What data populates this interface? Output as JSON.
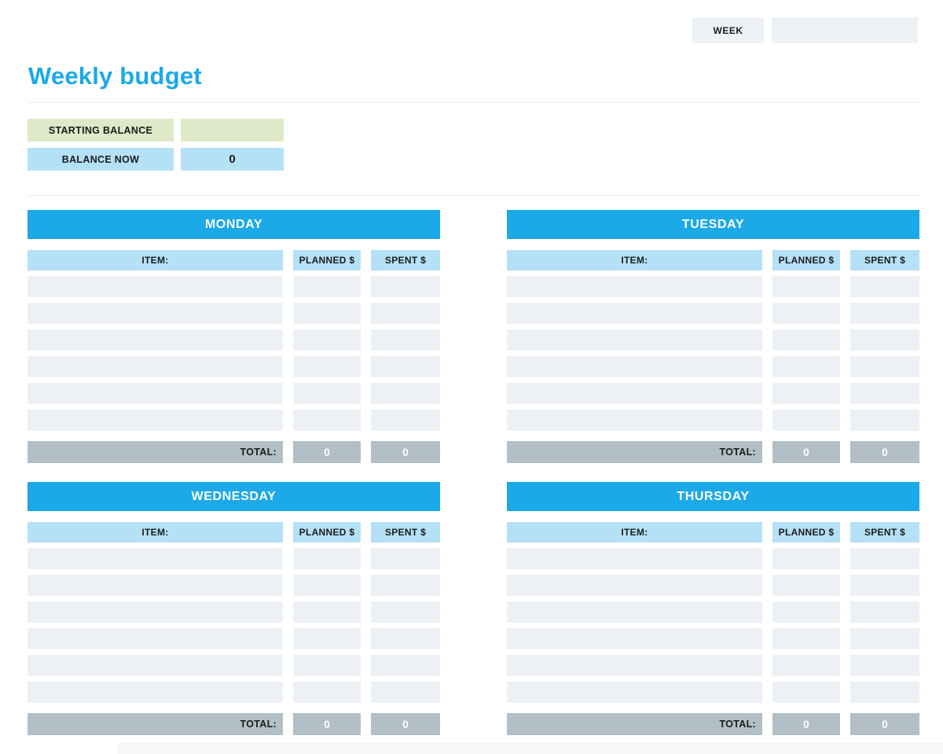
{
  "header": {
    "week_label": "WEEK",
    "week_value": ""
  },
  "title": "Weekly budget",
  "balance": {
    "starting_label": "STARTING BALANCE",
    "starting_value": "",
    "now_label": "BALANCE NOW",
    "now_value": "0"
  },
  "colors": {
    "accent_blue": "#1ca9e8",
    "light_blue": "#b5e1f7",
    "row_gray": "#edf1f5",
    "total_gray": "#b3bfc6",
    "green": "#dfe8c8",
    "box_gray": "#eef2f5"
  },
  "tables": [
    {
      "day": "MONDAY",
      "columns": {
        "item": "ITEM:",
        "planned": "PLANNED $",
        "spent": "SPENT $"
      },
      "entries": [
        {
          "item": "",
          "planned": "",
          "spent": ""
        },
        {
          "item": "",
          "planned": "",
          "spent": ""
        },
        {
          "item": "",
          "planned": "",
          "spent": ""
        },
        {
          "item": "",
          "planned": "",
          "spent": ""
        },
        {
          "item": "",
          "planned": "",
          "spent": ""
        },
        {
          "item": "",
          "planned": "",
          "spent": ""
        }
      ],
      "total_label": "TOTAL:",
      "total_planned": "0",
      "total_spent": "0"
    },
    {
      "day": "TUESDAY",
      "columns": {
        "item": "ITEM:",
        "planned": "PLANNED $",
        "spent": "SPENT $"
      },
      "entries": [
        {
          "item": "",
          "planned": "",
          "spent": ""
        },
        {
          "item": "",
          "planned": "",
          "spent": ""
        },
        {
          "item": "",
          "planned": "",
          "spent": ""
        },
        {
          "item": "",
          "planned": "",
          "spent": ""
        },
        {
          "item": "",
          "planned": "",
          "spent": ""
        },
        {
          "item": "",
          "planned": "",
          "spent": ""
        }
      ],
      "total_label": "TOTAL:",
      "total_planned": "0",
      "total_spent": "0"
    },
    {
      "day": "WEDNESDAY",
      "columns": {
        "item": "ITEM:",
        "planned": "PLANNED $",
        "spent": "SPENT $"
      },
      "entries": [
        {
          "item": "",
          "planned": "",
          "spent": ""
        },
        {
          "item": "",
          "planned": "",
          "spent": ""
        },
        {
          "item": "",
          "planned": "",
          "spent": ""
        },
        {
          "item": "",
          "planned": "",
          "spent": ""
        },
        {
          "item": "",
          "planned": "",
          "spent": ""
        },
        {
          "item": "",
          "planned": "",
          "spent": ""
        }
      ],
      "total_label": "TOTAL:",
      "total_planned": "0",
      "total_spent": "0"
    },
    {
      "day": "THURSDAY",
      "columns": {
        "item": "ITEM:",
        "planned": "PLANNED $",
        "spent": "SPENT $"
      },
      "entries": [
        {
          "item": "",
          "planned": "",
          "spent": ""
        },
        {
          "item": "",
          "planned": "",
          "spent": ""
        },
        {
          "item": "",
          "planned": "",
          "spent": ""
        },
        {
          "item": "",
          "planned": "",
          "spent": ""
        },
        {
          "item": "",
          "planned": "",
          "spent": ""
        },
        {
          "item": "",
          "planned": "",
          "spent": ""
        }
      ],
      "total_label": "TOTAL:",
      "total_planned": "0",
      "total_spent": "0"
    }
  ]
}
